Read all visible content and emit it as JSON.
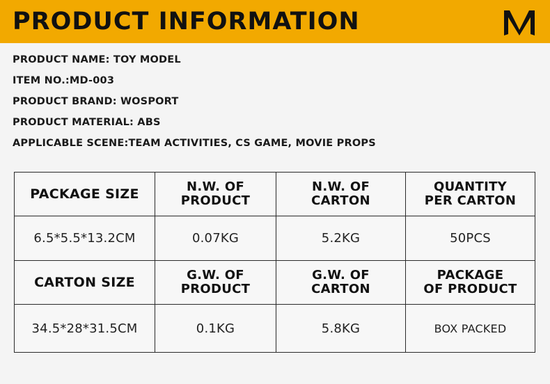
{
  "header": {
    "title": "PRODUCT INFORMATION",
    "logo_icon": "w-brand-logo-icon",
    "background": "#f2a900"
  },
  "info": [
    "PRODUCT NAME: TOY MODEL",
    "ITEM NO.:MD-003",
    "PRODUCT BRAND: WOSPORT",
    "PRODUCT MATERIAL: ABS",
    "APPLICABLE SCENE:TEAM ACTIVITIES, CS GAME, MOVIE PROPS"
  ],
  "table": {
    "row1_headers": [
      [
        "PACKAGE SIZE"
      ],
      [
        "N.W. OF",
        "PRODUCT"
      ],
      [
        "N.W. OF",
        "CARTON"
      ],
      [
        "QUANTITY",
        "PER CARTON"
      ]
    ],
    "row1_values": [
      "6.5*5.5*13.2CM",
      "0.07KG",
      "5.2KG",
      "50PCS"
    ],
    "row2_headers": [
      [
        "CARTON SIZE"
      ],
      [
        "G.W. OF",
        "PRODUCT"
      ],
      [
        "G.W. OF",
        "CARTON"
      ],
      [
        "PACKAGE",
        "OF PRODUCT"
      ]
    ],
    "row2_values": [
      "34.5*28*31.5CM",
      "0.1KG",
      "5.8KG",
      "BOX PACKED"
    ]
  }
}
